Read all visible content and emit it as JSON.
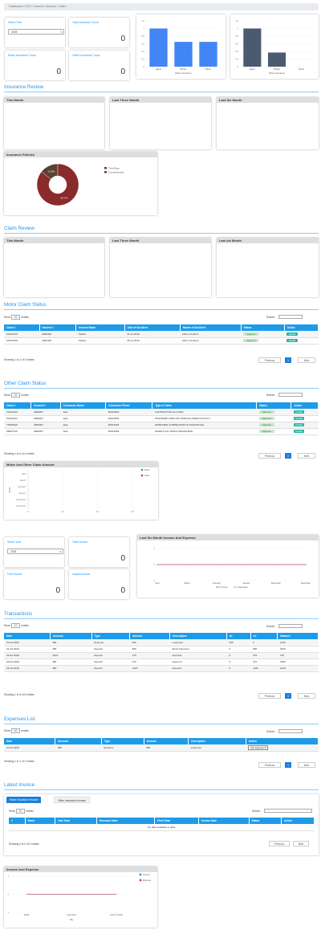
{
  "breadcrumb": "Dashboard  /  CEO  /  Insured  /  Account  /  Claim",
  "top": {
    "select_year_label": "Select Year",
    "select_year_value": "2025",
    "total_insurance_label": "Total Insurance Count",
    "total_insurance_value": "0",
    "motor_insurance_label": "Motor Insurance Count",
    "motor_insurance_value": "0",
    "other_insurance_label": "Other Insurance Count",
    "other_insurance_value": "0"
  },
  "motor_bar": {
    "type": "bar",
    "categories": [
      "Agent",
      "Broker",
      "Direct"
    ],
    "values": [
      1.0,
      0.65,
      0.65
    ],
    "xlabel": "Motor Insurance",
    "ylim": [
      0,
      1.2
    ],
    "color": "#4285f4"
  },
  "other_bar": {
    "type": "bar",
    "categories": [
      "Agent",
      "Broker",
      "Direct"
    ],
    "values": [
      1.0,
      0.37,
      0
    ],
    "xlabel": "Other Insurance",
    "ylim": [
      0,
      1.2
    ],
    "color": "#4a5b70"
  },
  "insurance_review": {
    "title": "Insurance Review",
    "panels": [
      "This Month",
      "Last Three Month",
      "Last Six Month"
    ]
  },
  "insurance_policies": {
    "title": "Insurance Policies",
    "chart_data": {
      "type": "pie",
      "slices": [
        {
          "name": "Third Party",
          "value": 85.7,
          "label": "85.71%",
          "color": "#8b2a2a"
        },
        {
          "name": "Comprehensive",
          "value": 14.3,
          "label": "14.29%",
          "color": "#5c4033"
        }
      ]
    }
  },
  "claim_review": {
    "title": "Claim Review",
    "panels": [
      "This Month",
      "Last Three Month",
      "Last six Month"
    ]
  },
  "motor_claim": {
    "title": "Motor Claim Status",
    "show": "Show",
    "entries_value": "10",
    "entries": "entries",
    "search": "Search:",
    "columns": [
      "Claim #",
      "Insured #",
      "Insured Name",
      "Date of Accident",
      "Nature of Accident",
      "Status",
      "Action"
    ],
    "rows": [
      [
        "621591XX",
        "2486440",
        "Haklan",
        "21-11-2019",
        "Minor Accident",
        "Approve",
        "Details"
      ],
      [
        "61532708",
        "2486440",
        "Haklan",
        "26-11-2019",
        "Minor Accident",
        "Approve",
        "Details"
      ]
    ],
    "info": "Showing 1 to 2 of 2 entries",
    "prev": "Previous",
    "page": "1",
    "next": "Next"
  },
  "other_claim": {
    "title": "Other Claim Status",
    "show": "Show",
    "entries_value": "10",
    "entries": "entries",
    "search": "Search:",
    "columns": [
      "Claim #",
      "Insured #",
      "Contractor Name",
      "Contractor Phone",
      "Type of Claim",
      "Status",
      "Action"
    ],
    "rows": [
      [
        "14324132",
        "4986287",
        "Jack",
        "45641654",
        "CONTRACTOR ALL RISK",
        "Approve",
        "Details"
      ],
      [
        "61402014",
        "4986287",
        "Jack",
        "45641654",
        "STANDARD FIRE AND SPECIAL PERILS POLICY",
        "Approve",
        "Details"
      ],
      [
        "73590540",
        "4986287",
        "Jack",
        "45641654",
        "WORKMEN COMPENSATION INSURANCE",
        "Approve",
        "Details"
      ],
      [
        "58607315",
        "4986287",
        "Jack",
        "45641654",
        "ASSETS ALL RISKS INSURANCE",
        "Approve",
        "Details"
      ]
    ],
    "info": "Showing 1 to 4 of 4 entries",
    "prev": "Previous",
    "page": "1",
    "next": "Next"
  },
  "motor_other_amount": {
    "title": "Motor And Other Claim Amount",
    "chart_data": {
      "type": "bar",
      "orientation": "horizontal",
      "categories": [
        "April",
        "March",
        "February",
        "January",
        "December",
        "November"
      ],
      "series": [
        {
          "name": "Motor",
          "values": [
            0,
            0,
            0,
            0,
            0,
            0
          ],
          "color": "#2f8fd8"
        },
        {
          "name": "Other",
          "values": [
            0,
            0,
            0,
            0,
            0,
            0
          ],
          "color": "#e53935"
        }
      ],
      "xticks": [
        "0",
        "0.2",
        "0.4",
        "0.6"
      ],
      "ylabel": "Month"
    }
  },
  "invoice_cards": {
    "select_year_label": "Select Year",
    "select_year_value": "2025",
    "total_invoice_label": "Total Invoice",
    "total_invoice_value": "0",
    "paid_invoice_label": "Paid Invoice",
    "paid_invoice_value": "0",
    "unpaid_invoice_label": "Unpaid Invoice",
    "unpaid_invoice_value": "0"
  },
  "income_expense_six": {
    "title": "Last Six Month Income And Expense",
    "chart_data": {
      "type": "line",
      "x": [
        "April",
        "March",
        "February",
        "January",
        "December",
        "November"
      ],
      "series": [
        {
          "name": "Income",
          "values": [
            0,
            0,
            0,
            0,
            0,
            0
          ],
          "color": "#3f51b5"
        },
        {
          "name": "Expenses",
          "values": [
            0,
            0,
            0,
            0,
            0,
            0
          ],
          "color": "#e57373"
        }
      ],
      "yticks": [
        "1",
        "0",
        "-1"
      ]
    }
  },
  "transactions": {
    "title": "Transactions",
    "show": "Show",
    "entries_value": "10",
    "entries": "entries",
    "search": "Search:",
    "columns": [
      "Date",
      "Account",
      "Type",
      "Amount",
      "Description",
      "Dr.",
      "Cr.",
      "Balance"
    ],
    "rows": [
      [
        "01-02-2020",
        "SBI",
        "Expense",
        "300",
        "expense1",
        "300",
        "0",
        "1120"
      ],
      [
        "01-10-2019",
        "SBI",
        "Deposit",
        "550",
        "Motor Payment",
        "0",
        "550",
        "2540"
      ],
      [
        "02-02-2020",
        "AXIS",
        "Deposit",
        "470",
        "deposit2",
        "0",
        "470",
        "470"
      ],
      [
        "02-02-2020",
        "SBI",
        "Deposit",
        "470",
        "payment",
        "0",
        "470",
        "1550"
      ],
      [
        "25-12-2019",
        "SBI",
        "Deposit",
        "1420",
        "deposit1",
        "0",
        "1420",
        "1420"
      ]
    ],
    "info": "Showing 1 to 5 of 5 entries",
    "prev": "Previous",
    "page": "1",
    "next": "Next"
  },
  "expenses": {
    "title": "Expenses List",
    "show": "Show",
    "entries_value": "10",
    "entries": "entries",
    "search": "Search:",
    "columns": [
      "Date",
      "Account",
      "Type",
      "Amount",
      "Description",
      "Action"
    ],
    "rows": [
      [
        "01-02-2020",
        "SBI",
        "Expense",
        "300",
        "expense1",
        "Not Approve"
      ]
    ],
    "info": "Showing 1 to 1 of 1 entries",
    "prev": "Previous",
    "page": "1",
    "next": "Next"
  },
  "latest_invoice": {
    "title": "Latest Invoice",
    "tabs": [
      "Motor Insurance Invoice",
      "Other Insurance Invoice"
    ],
    "show": "Show",
    "entries_value": "10",
    "entries": "entries",
    "search": "Search:",
    "columns": [
      "#",
      "Name",
      "Sub Total",
      "Discount Value",
      "Final Total",
      "Invoice Date",
      "Status",
      "Action"
    ],
    "empty": "No data available in table",
    "info": "Showing 0 to 0 of 0 entries",
    "prev": "Previous",
    "next": "Next"
  },
  "income_expense": {
    "title": "Income And Expense",
    "chart_data": {
      "type": "line",
      "x": [
        "Today",
        "Last week",
        "Last six month"
      ],
      "series": [
        {
          "name": "Income",
          "values": [
            0,
            0,
            0
          ],
          "color": "#2f8fd8"
        },
        {
          "name": "Expense",
          "values": [
            0,
            0,
            0
          ],
          "color": "#e53935"
        }
      ],
      "yticks": [
        "1",
        "0",
        "-1"
      ],
      "xlabel": "Day"
    }
  }
}
